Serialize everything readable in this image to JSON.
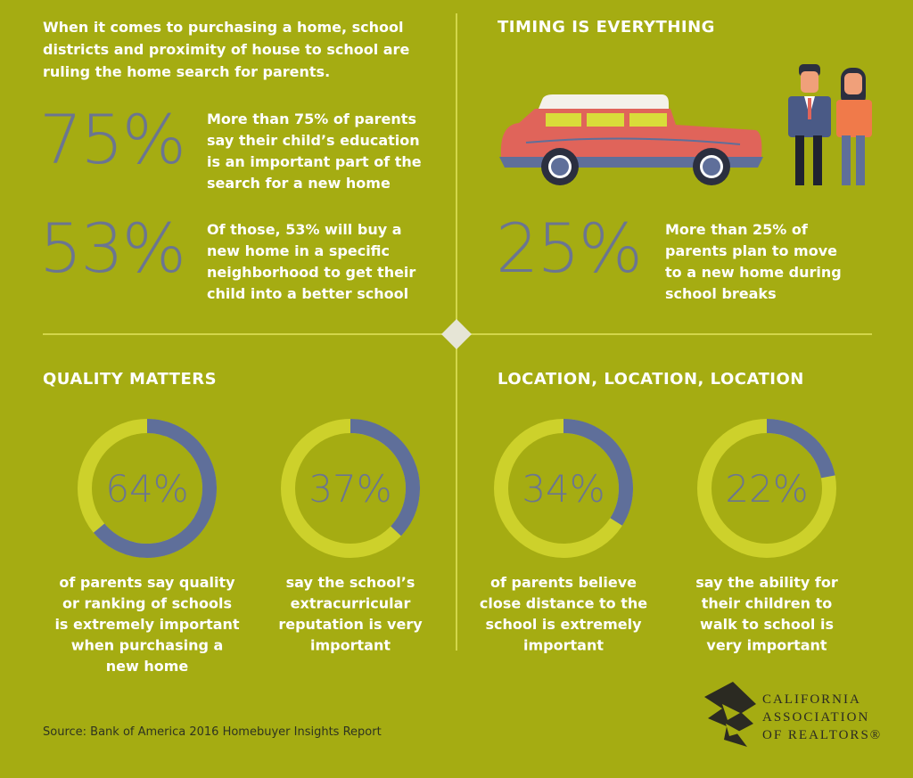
{
  "intro": [
    "When it comes to purchasing a home, school",
    "districts and proximity of house to school are",
    "ruling the home search for parents."
  ],
  "stats": [
    {
      "value": "75%",
      "text": [
        "More than 75% of parents",
        "say their child’s education",
        "is an important part of the",
        "search for a new home"
      ]
    },
    {
      "value": "53%",
      "text": [
        "Of those, 53% will buy a",
        "new home in a specific",
        "neighborhood to get their",
        "child into a better school"
      ]
    }
  ],
  "timing": {
    "title": "TIMING IS EVERYTHING",
    "value": "25%",
    "text": [
      "More than 25% of",
      "parents plan to move",
      "to a new home during",
      "school breaks"
    ]
  },
  "sections": [
    "QUALITY MATTERS",
    "LOCATION, LOCATION, LOCATION"
  ],
  "chart_data": [
    {
      "type": "donut",
      "values": [
        64
      ],
      "value_labels": [
        "64%"
      ],
      "color": "#5f6f9a",
      "caption": [
        "of parents say quality",
        "or ranking of schools",
        "is extremely important",
        "when purchasing a",
        "new home"
      ]
    },
    {
      "type": "donut",
      "values": [
        37
      ],
      "value_labels": [
        "37%"
      ],
      "color": "#5f6f9a",
      "caption": [
        "say the school’s",
        "extracurricular",
        "reputation is very",
        "important"
      ]
    },
    {
      "type": "donut",
      "values": [
        34
      ],
      "value_labels": [
        "34%"
      ],
      "color": "#5f6f9a",
      "caption": [
        "of parents believe",
        "close distance to the",
        "school is extremely",
        "important"
      ]
    },
    {
      "type": "donut",
      "values": [
        22
      ],
      "value_labels": [
        "22%"
      ],
      "color": "#5f6f9a",
      "caption": [
        "say the ability for",
        "their children to",
        "walk to school is",
        "very important"
      ]
    }
  ],
  "source": "Source: Bank of America 2016 Homebuyer Insights Report",
  "logo": [
    "CALIFORNIA",
    "ASSOCIATION",
    "OF REALTORS®"
  ]
}
